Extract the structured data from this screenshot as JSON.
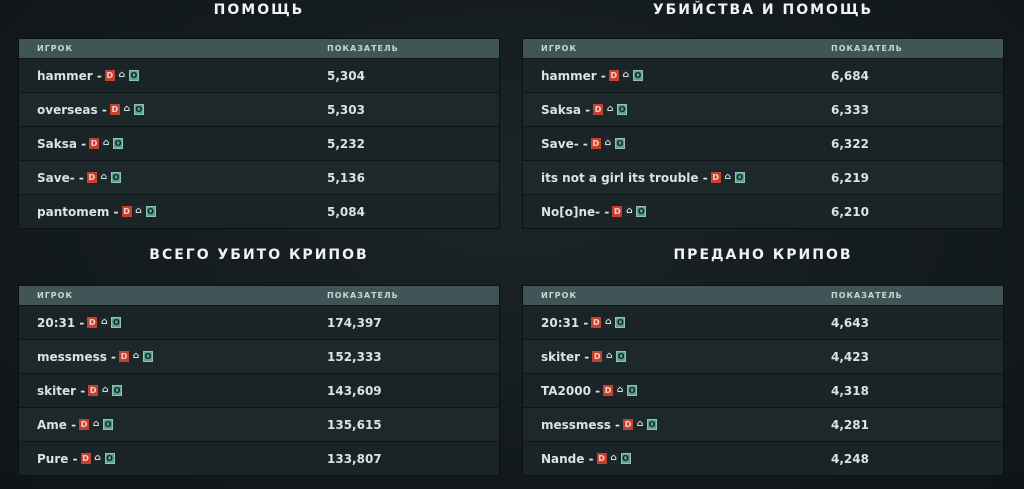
{
  "columns": {
    "player": "ИГРОК",
    "value": "ПОКАЗАТЕЛЬ"
  },
  "badges": {
    "d": "D",
    "h": "⌂",
    "o": "O"
  },
  "panels": [
    {
      "title": "ПОМОЩЬ",
      "rows": [
        {
          "player": "hammer -",
          "value": "5,304"
        },
        {
          "player": "overseas -",
          "value": "5,303"
        },
        {
          "player": "Saksa -",
          "value": "5,232"
        },
        {
          "player": "Save- -",
          "value": "5,136"
        },
        {
          "player": "pantomem -",
          "value": "5,084"
        }
      ]
    },
    {
      "title": "УБИЙСТВА И ПОМОЩЬ",
      "rows": [
        {
          "player": "hammer -",
          "value": "6,684"
        },
        {
          "player": "Saksa -",
          "value": "6,333"
        },
        {
          "player": "Save- -",
          "value": "6,322"
        },
        {
          "player": "its not a girl its trouble -",
          "value": "6,219"
        },
        {
          "player": "No[o]ne- -",
          "value": "6,210"
        }
      ]
    },
    {
      "title": "ВСЕГО УБИТО КРИПОВ",
      "rows": [
        {
          "player": "20:31 -",
          "value": "174,397"
        },
        {
          "player": "messmess -",
          "value": "152,333"
        },
        {
          "player": "skiter -",
          "value": "143,609"
        },
        {
          "player": "Ame -",
          "value": "135,615"
        },
        {
          "player": "Pure -",
          "value": "133,807"
        }
      ]
    },
    {
      "title": "ПРЕДАНО КРИПОВ",
      "rows": [
        {
          "player": "20:31 -",
          "value": "4,643"
        },
        {
          "player": "skiter -",
          "value": "4,423"
        },
        {
          "player": "TA2000 -",
          "value": "4,318"
        },
        {
          "player": "messmess -",
          "value": "4,281"
        },
        {
          "player": "Nande -",
          "value": "4,248"
        }
      ]
    }
  ]
}
